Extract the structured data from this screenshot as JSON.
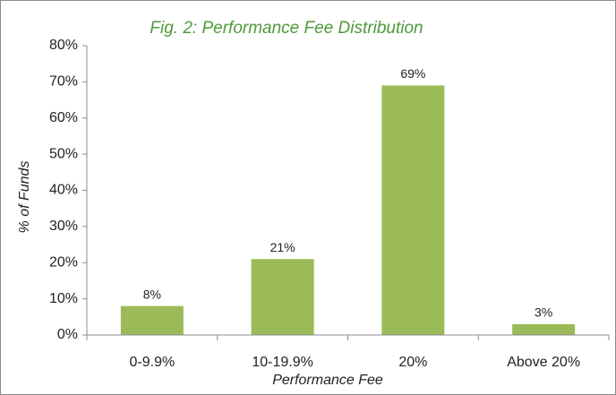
{
  "chart_data": {
    "type": "bar",
    "title": "Fig. 2: Performance Fee Distribution",
    "xlabel": "Performance Fee",
    "ylabel": "% of Funds",
    "categories": [
      "0-9.9%",
      "10-19.9%",
      "20%",
      "Above 20%"
    ],
    "values": [
      8,
      21,
      69,
      3
    ],
    "value_labels": [
      "8%",
      "21%",
      "69%",
      "3%"
    ],
    "color": "#9bbb59",
    "ylim": [
      0,
      80
    ],
    "yticks": [
      {
        "value": 0,
        "label": "0%"
      },
      {
        "value": 10,
        "label": "10%"
      },
      {
        "value": 20,
        "label": "20%"
      },
      {
        "value": 30,
        "label": "30%"
      },
      {
        "value": 40,
        "label": "40%"
      },
      {
        "value": 50,
        "label": "50%"
      },
      {
        "value": 60,
        "label": "60%"
      },
      {
        "value": 70,
        "label": "70%"
      },
      {
        "value": 80,
        "label": "80%"
      }
    ],
    "grid": false
  }
}
